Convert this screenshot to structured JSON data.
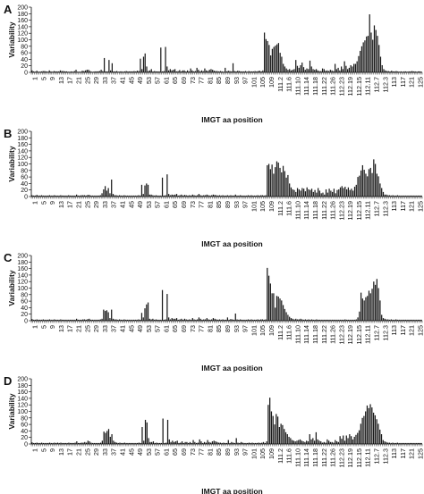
{
  "chart_data": [
    {
      "panel_label": "A",
      "type": "bar",
      "xlabel": "IMGT aa position",
      "ylabel": "Variability",
      "ylim": [
        0,
        200
      ],
      "yticks": [
        0,
        20,
        40,
        60,
        80,
        100,
        120,
        140,
        160,
        180,
        200
      ],
      "x_tick_labels": [
        "1",
        "5",
        "9",
        "13",
        "17",
        "21",
        "25",
        "29",
        "33",
        "37",
        "41",
        "45",
        "49",
        "53",
        "57",
        "61",
        "65",
        "69",
        "73",
        "77",
        "81",
        "85",
        "89",
        "93",
        "97",
        "101",
        "105",
        "109",
        "111.2",
        "111.6",
        "111.10",
        "111.14",
        "111.18",
        "111.22",
        "111.26",
        "112.23",
        "112.19",
        "112.15",
        "112.11",
        "112.7",
        "112.3",
        "113",
        "117",
        "121",
        "125"
      ],
      "values": [
        6,
        3,
        2,
        5,
        2,
        2,
        3,
        4,
        4,
        3,
        2,
        6,
        3,
        2,
        4,
        3,
        3,
        3,
        6,
        4,
        4,
        3,
        3,
        2,
        2,
        3,
        2,
        4,
        8,
        2,
        2,
        2,
        5,
        4,
        6,
        8,
        8,
        4,
        2,
        2,
        3,
        3,
        3,
        4,
        8,
        4,
        44,
        3,
        3,
        38,
        6,
        28,
        3,
        3,
        4,
        2,
        3,
        3,
        2,
        3,
        4,
        3,
        3,
        3,
        3,
        4,
        3,
        5,
        4,
        42,
        10,
        48,
        58,
        18,
        4,
        6,
        10,
        3,
        4,
        3,
        3,
        3,
        76,
        3,
        4,
        78,
        18,
        6,
        10,
        6,
        8,
        10,
        3,
        4,
        7,
        3,
        6,
        6,
        3,
        6,
        3,
        12,
        6,
        3,
        4,
        14,
        8,
        3,
        6,
        4,
        12,
        6,
        4,
        8,
        10,
        8,
        5,
        4,
        4,
        3,
        4,
        3,
        2,
        14,
        3,
        5,
        4,
        3,
        28,
        4,
        3,
        5,
        4,
        3,
        3,
        3,
        4,
        2,
        4,
        3,
        3,
        3,
        4,
        3,
        4,
        5,
        3,
        6,
        122,
        102,
        96,
        84,
        52,
        72,
        78,
        82,
        86,
        90,
        60,
        48,
        26,
        18,
        12,
        8,
        10,
        6,
        8,
        10,
        38,
        20,
        14,
        22,
        30,
        16,
        8,
        12,
        10,
        36,
        18,
        10,
        8,
        10,
        6,
        4,
        4,
        12,
        10,
        5,
        6,
        4,
        8,
        6,
        4,
        26,
        10,
        14,
        6,
        18,
        10,
        34,
        20,
        10,
        14,
        22,
        18,
        26,
        26,
        34,
        50,
        66,
        80,
        92,
        98,
        110,
        112,
        178,
        122,
        100,
        144,
        130,
        112,
        84,
        48,
        22,
        10,
        6,
        4,
        4,
        3,
        5,
        3,
        3,
        4,
        3,
        2,
        3,
        2,
        3,
        3,
        2,
        3,
        3,
        4,
        3,
        3,
        2,
        3,
        3,
        2
      ]
    },
    {
      "panel_label": "B",
      "type": "bar",
      "xlabel": "IMGT aa position",
      "ylabel": "Variability",
      "ylim": [
        0,
        200
      ],
      "yticks": [
        0,
        20,
        40,
        60,
        80,
        100,
        120,
        140,
        160,
        180,
        200
      ],
      "x_tick_labels": [
        "1",
        "5",
        "9",
        "13",
        "17",
        "21",
        "25",
        "29",
        "33",
        "37",
        "41",
        "45",
        "49",
        "53",
        "57",
        "61",
        "65",
        "69",
        "73",
        "77",
        "81",
        "85",
        "89",
        "93",
        "97",
        "101",
        "105",
        "109",
        "111.2",
        "111.6",
        "111.10",
        "111.14",
        "111.18",
        "111.22",
        "111.26",
        "112.23",
        "112.19",
        "112.15",
        "112.11",
        "112.7",
        "112.3",
        "113",
        "117",
        "121",
        "125"
      ],
      "values": [
        4,
        3,
        3,
        5,
        3,
        3,
        4,
        3,
        3,
        3,
        3,
        4,
        3,
        3,
        4,
        3,
        3,
        3,
        4,
        3,
        3,
        3,
        3,
        4,
        3,
        3,
        3,
        3,
        6,
        3,
        3,
        4,
        4,
        4,
        3,
        5,
        5,
        3,
        3,
        3,
        3,
        3,
        3,
        4,
        10,
        22,
        32,
        18,
        26,
        10,
        52,
        8,
        4,
        4,
        3,
        4,
        3,
        3,
        4,
        3,
        3,
        3,
        3,
        3,
        3,
        3,
        3,
        4,
        3,
        36,
        8,
        34,
        40,
        36,
        6,
        6,
        4,
        3,
        4,
        3,
        3,
        3,
        58,
        3,
        4,
        68,
        8,
        4,
        6,
        5,
        6,
        8,
        3,
        4,
        6,
        3,
        5,
        4,
        3,
        4,
        3,
        6,
        4,
        3,
        4,
        8,
        4,
        3,
        4,
        4,
        6,
        4,
        3,
        4,
        6,
        5,
        4,
        3,
        4,
        3,
        4,
        3,
        3,
        4,
        3,
        4,
        3,
        3,
        6,
        3,
        3,
        4,
        3,
        3,
        3,
        3,
        4,
        3,
        4,
        3,
        3,
        3,
        4,
        3,
        4,
        4,
        3,
        4,
        96,
        100,
        84,
        98,
        70,
        90,
        108,
        104,
        88,
        74,
        94,
        78,
        58,
        66,
        40,
        28,
        22,
        20,
        14,
        26,
        22,
        18,
        26,
        24,
        16,
        28,
        22,
        20,
        24,
        14,
        20,
        12,
        26,
        18,
        10,
        12,
        6,
        22,
        12,
        24,
        18,
        14,
        24,
        10,
        20,
        22,
        28,
        32,
        26,
        30,
        22,
        28,
        20,
        24,
        18,
        30,
        36,
        60,
        64,
        80,
        96,
        82,
        70,
        62,
        84,
        88,
        72,
        114,
        100,
        70,
        62,
        40,
        26,
        14,
        6,
        6,
        4,
        4,
        3,
        4,
        3,
        3,
        4,
        3,
        3,
        3,
        3,
        3,
        3,
        3,
        3,
        3,
        3,
        3,
        3,
        3,
        3,
        3
      ]
    },
    {
      "panel_label": "C",
      "type": "bar",
      "xlabel": "IMGT aa position",
      "ylabel": "Variability",
      "ylim": [
        0,
        200
      ],
      "yticks": [
        0,
        20,
        40,
        60,
        80,
        100,
        120,
        140,
        160,
        180,
        200
      ],
      "x_tick_labels": [
        "1",
        "5",
        "9",
        "13",
        "17",
        "21",
        "25",
        "29",
        "33",
        "37",
        "41",
        "45",
        "49",
        "53",
        "57",
        "61",
        "65",
        "69",
        "73",
        "77",
        "81",
        "85",
        "89",
        "93",
        "97",
        "101",
        "105",
        "109",
        "111.2",
        "111.6",
        "111.10",
        "111.14",
        "111.18",
        "111.22",
        "111.26",
        "112.23",
        "112.19",
        "112.15",
        "112.11",
        "112.7",
        "112.3",
        "113",
        "117",
        "121",
        "125"
      ],
      "values": [
        5,
        3,
        3,
        4,
        3,
        3,
        3,
        4,
        3,
        3,
        3,
        4,
        3,
        3,
        4,
        3,
        3,
        3,
        4,
        3,
        3,
        3,
        3,
        3,
        3,
        3,
        3,
        3,
        6,
        3,
        3,
        3,
        4,
        4,
        3,
        5,
        6,
        3,
        3,
        3,
        3,
        3,
        3,
        4,
        6,
        34,
        30,
        32,
        26,
        8,
        34,
        6,
        4,
        4,
        3,
        4,
        3,
        3,
        4,
        3,
        3,
        3,
        3,
        3,
        3,
        3,
        3,
        4,
        3,
        24,
        10,
        38,
        50,
        56,
        6,
        4,
        6,
        3,
        4,
        3,
        3,
        3,
        94,
        3,
        4,
        82,
        10,
        4,
        8,
        6,
        6,
        8,
        3,
        4,
        6,
        3,
        6,
        4,
        3,
        4,
        3,
        8,
        4,
        3,
        4,
        10,
        6,
        3,
        4,
        4,
        8,
        4,
        3,
        4,
        8,
        6,
        4,
        3,
        4,
        3,
        4,
        3,
        3,
        10,
        3,
        5,
        4,
        3,
        22,
        4,
        3,
        4,
        3,
        3,
        3,
        3,
        4,
        3,
        4,
        3,
        3,
        3,
        4,
        3,
        4,
        4,
        3,
        4,
        162,
        138,
        114,
        84,
        84,
        40,
        76,
        74,
        68,
        62,
        48,
        36,
        26,
        18,
        12,
        8,
        6,
        4,
        6,
        4,
        4,
        6,
        4,
        3,
        4,
        3,
        4,
        3,
        4,
        3,
        3,
        4,
        3,
        3,
        3,
        3,
        3,
        3,
        3,
        3,
        3,
        3,
        3,
        3,
        3,
        3,
        3,
        3,
        3,
        4,
        3,
        3,
        3,
        3,
        3,
        3,
        4,
        10,
        28,
        86,
        68,
        62,
        72,
        76,
        92,
        84,
        98,
        120,
        110,
        128,
        100,
        62,
        18,
        8,
        6,
        4,
        4,
        3,
        4,
        3,
        3,
        4,
        3,
        3,
        3,
        3,
        3,
        3,
        3,
        3,
        3,
        3,
        3,
        3,
        3,
        3,
        3,
        3
      ]
    },
    {
      "panel_label": "D",
      "type": "bar",
      "xlabel": "IMGT aa position",
      "ylabel": "Variability",
      "ylim": [
        0,
        200
      ],
      "yticks": [
        0,
        20,
        40,
        60,
        80,
        100,
        120,
        140,
        160,
        180,
        200
      ],
      "x_tick_labels": [
        "1",
        "5",
        "9",
        "13",
        "17",
        "21",
        "25",
        "29",
        "33",
        "37",
        "41",
        "45",
        "49",
        "53",
        "57",
        "61",
        "65",
        "69",
        "73",
        "77",
        "81",
        "85",
        "89",
        "93",
        "97",
        "101",
        "105",
        "109",
        "111.2",
        "111.6",
        "111.10",
        "111.14",
        "111.18",
        "111.22",
        "111.26",
        "112.23",
        "112.19",
        "112.15",
        "112.11",
        "112.7",
        "112.3",
        "113",
        "117",
        "121",
        "125"
      ],
      "values": [
        5,
        3,
        3,
        4,
        3,
        3,
        4,
        3,
        3,
        3,
        3,
        4,
        3,
        3,
        4,
        3,
        4,
        3,
        4,
        3,
        3,
        3,
        3,
        4,
        3,
        3,
        3,
        4,
        8,
        3,
        3,
        4,
        4,
        6,
        4,
        10,
        8,
        4,
        3,
        3,
        3,
        3,
        3,
        4,
        10,
        38,
        34,
        40,
        46,
        22,
        30,
        10,
        6,
        4,
        3,
        4,
        3,
        3,
        4,
        3,
        3,
        3,
        3,
        3,
        3,
        3,
        3,
        4,
        3,
        52,
        10,
        74,
        66,
        18,
        6,
        6,
        8,
        3,
        4,
        3,
        3,
        3,
        78,
        3,
        4,
        74,
        14,
        6,
        10,
        6,
        8,
        10,
        3,
        4,
        8,
        3,
        6,
        6,
        3,
        6,
        3,
        12,
        6,
        3,
        4,
        14,
        8,
        3,
        6,
        4,
        12,
        6,
        4,
        8,
        10,
        8,
        6,
        4,
        4,
        3,
        4,
        3,
        3,
        12,
        3,
        6,
        4,
        3,
        18,
        4,
        3,
        6,
        4,
        3,
        3,
        3,
        4,
        3,
        4,
        3,
        3,
        3,
        4,
        3,
        4,
        6,
        3,
        8,
        120,
        142,
        100,
        86,
        60,
        92,
        84,
        52,
        62,
        58,
        46,
        36,
        30,
        22,
        18,
        12,
        10,
        8,
        10,
        12,
        14,
        10,
        8,
        6,
        10,
        8,
        30,
        14,
        18,
        10,
        36,
        14,
        10,
        8,
        4,
        6,
        4,
        14,
        10,
        6,
        6,
        4,
        12,
        8,
        6,
        24,
        16,
        26,
        10,
        26,
        18,
        30,
        24,
        14,
        22,
        28,
        34,
        42,
        62,
        80,
        86,
        100,
        118,
        110,
        122,
        112,
        96,
        88,
        76,
        62,
        44,
        30,
        12,
        8,
        6,
        4,
        4,
        3,
        4,
        3,
        3,
        4,
        3,
        3,
        3,
        3,
        3,
        3,
        3,
        3,
        3,
        3,
        3,
        3,
        3,
        3,
        3
      ]
    }
  ]
}
